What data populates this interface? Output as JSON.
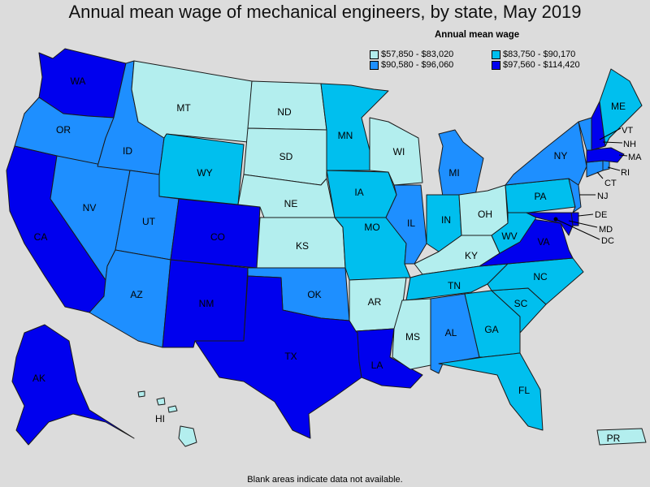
{
  "title": "Annual mean wage of mechanical engineers, by state, May 2019",
  "legend": {
    "title": "Annual mean wage",
    "bins": [
      {
        "label": "$57,850 - $83,020",
        "color": "#b3eeee"
      },
      {
        "label": "$83,750 - $90,170",
        "color": "#00bfee"
      },
      {
        "label": "$90,580 - $96,060",
        "color": "#1e8fff"
      },
      {
        "label": "$97,560 - $114,420",
        "color": "#0000ee"
      }
    ]
  },
  "note": "Blank areas indicate data not available.",
  "states": {
    "WA": 3,
    "OR": 2,
    "CA": 3,
    "NV": 2,
    "ID": 2,
    "MT": 0,
    "WY": 1,
    "UT": 2,
    "AZ": 2,
    "CO": 3,
    "NM": 3,
    "ND": 0,
    "SD": 0,
    "NE": 0,
    "KS": 0,
    "OK": 2,
    "TX": 3,
    "MN": 1,
    "IA": 1,
    "MO": 1,
    "AR": 0,
    "LA": 3,
    "WI": 0,
    "IL": 2,
    "MI": 2,
    "IN": 1,
    "OH": 0,
    "KY": 0,
    "TN": 1,
    "MS": 0,
    "AL": 2,
    "GA": 1,
    "FL": 1,
    "SC": 1,
    "NC": 1,
    "VA": 3,
    "WV": 1,
    "PA": 1,
    "NY": 2,
    "NJ": 2,
    "DE": 3,
    "MD": 3,
    "DC": 3,
    "CT": 2,
    "RI": 2,
    "MA": 3,
    "VT": 2,
    "NH": 3,
    "ME": 1,
    "AK": 3,
    "HI": 0,
    "PR": 0
  },
  "labels": {
    "WA": "WA",
    "OR": "OR",
    "CA": "CA",
    "NV": "NV",
    "ID": "ID",
    "MT": "MT",
    "WY": "WY",
    "UT": "UT",
    "AZ": "AZ",
    "CO": "CO",
    "NM": "NM",
    "ND": "ND",
    "SD": "SD",
    "NE": "NE",
    "KS": "KS",
    "OK": "OK",
    "TX": "TX",
    "MN": "MN",
    "IA": "IA",
    "MO": "MO",
    "AR": "AR",
    "LA": "LA",
    "WI": "WI",
    "IL": "IL",
    "MI": "MI",
    "IN": "IN",
    "OH": "OH",
    "KY": "KY",
    "TN": "TN",
    "MS": "MS",
    "AL": "AL",
    "GA": "GA",
    "FL": "FL",
    "SC": "SC",
    "NC": "NC",
    "VA": "VA",
    "WV": "WV",
    "PA": "PA",
    "NY": "NY",
    "NJ": "NJ",
    "DE": "DE",
    "MD": "MD",
    "DC": "DC",
    "CT": "CT",
    "RI": "RI",
    "MA": "MA",
    "VT": "VT",
    "NH": "NH",
    "ME": "ME",
    "AK": "AK",
    "HI": "HI",
    "PR": "PR"
  }
}
